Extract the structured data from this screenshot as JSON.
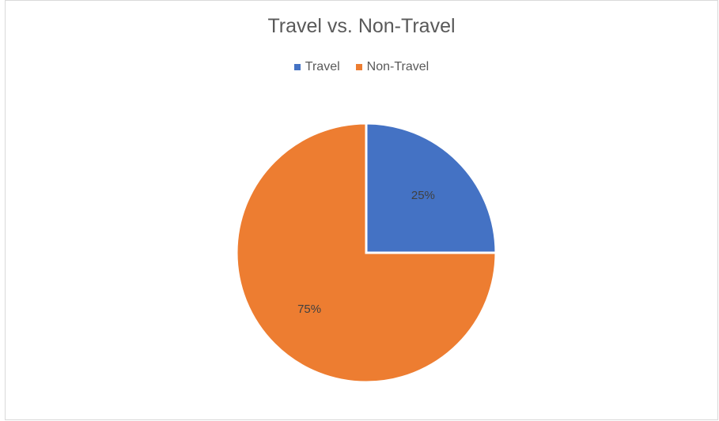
{
  "chart_data": {
    "type": "pie",
    "title": "Travel vs. Non-Travel",
    "legend_position": "top",
    "slices": [
      {
        "name": "Travel",
        "value": 25,
        "label": "25%",
        "color": "#4472C4"
      },
      {
        "name": "Non-Travel",
        "value": 75,
        "label": "75%",
        "color": "#ED7D31"
      }
    ]
  }
}
